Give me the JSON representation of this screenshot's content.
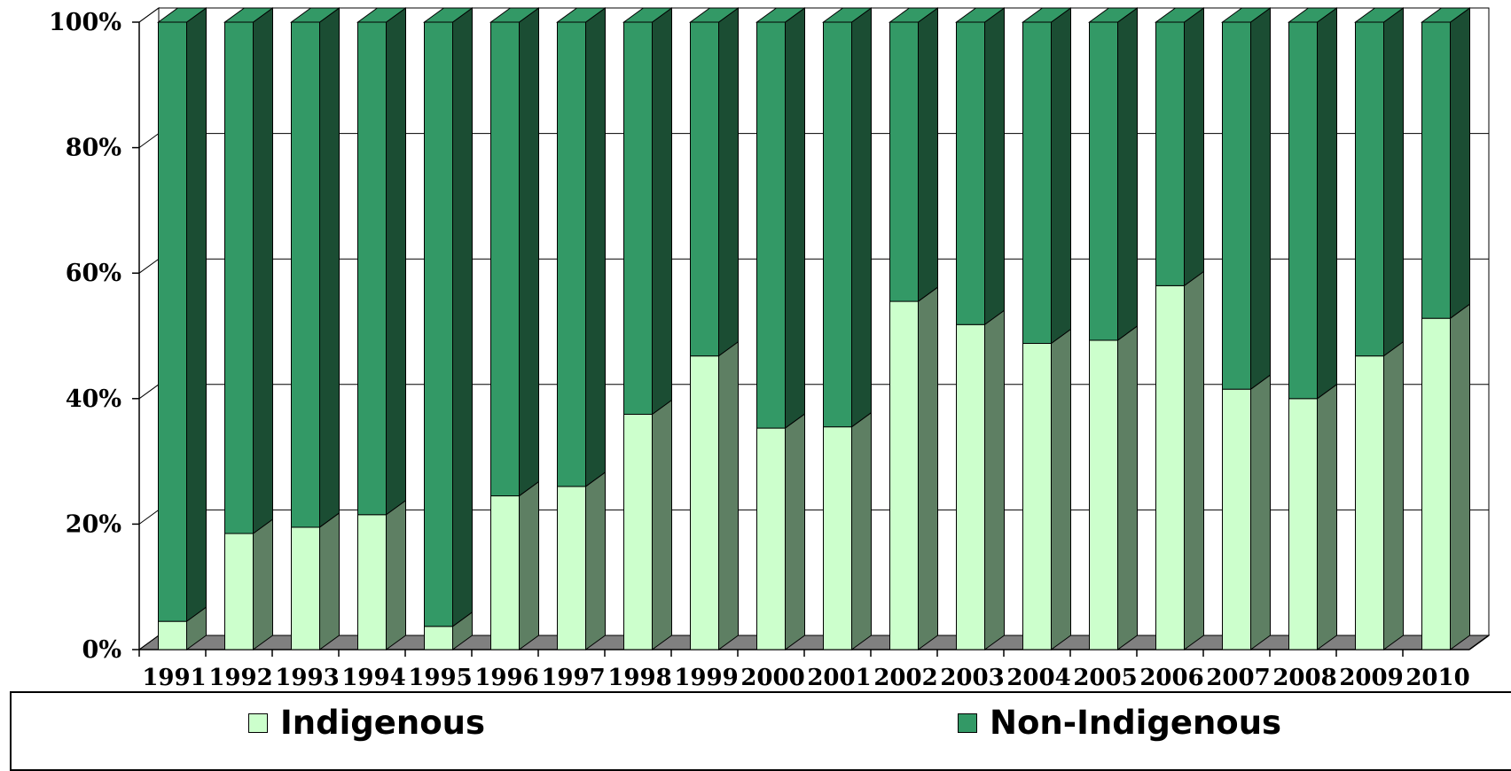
{
  "chart_data": {
    "type": "bar",
    "stacked": true,
    "percent_stacked": true,
    "three_d": true,
    "categories": [
      "1991",
      "1992",
      "1993",
      "1994",
      "1995",
      "1996",
      "1997",
      "1998",
      "1999",
      "2000",
      "2001",
      "2002",
      "2003",
      "2004",
      "2005",
      "2006",
      "2007",
      "2008",
      "2009",
      "2010"
    ],
    "series": [
      {
        "name": "Indigenous",
        "color": "#ccffcc",
        "side_color": "#5e7f63",
        "values": [
          4.5,
          18.5,
          19.5,
          21.5,
          3.7,
          24.5,
          26,
          37.5,
          46.8,
          35.3,
          35.5,
          55.5,
          51.8,
          48.8,
          49.3,
          58,
          41.5,
          40,
          46.8,
          52.8
        ]
      },
      {
        "name": "Non-Indigenous",
        "color": "#339966",
        "side_color": "#1b4d33",
        "values": [
          95.5,
          81.5,
          80.5,
          78.5,
          96.3,
          75.5,
          74,
          62.5,
          53.2,
          64.7,
          64.5,
          44.5,
          48.2,
          51.2,
          50.7,
          42,
          58.5,
          60,
          53.2,
          47.2
        ]
      }
    ],
    "yticks": [
      "0%",
      "20%",
      "40%",
      "60%",
      "80%",
      "100%"
    ],
    "ylim": [
      0,
      100
    ],
    "grid": true,
    "legend_position": "bottom",
    "title": "",
    "xlabel": "",
    "ylabel": ""
  }
}
